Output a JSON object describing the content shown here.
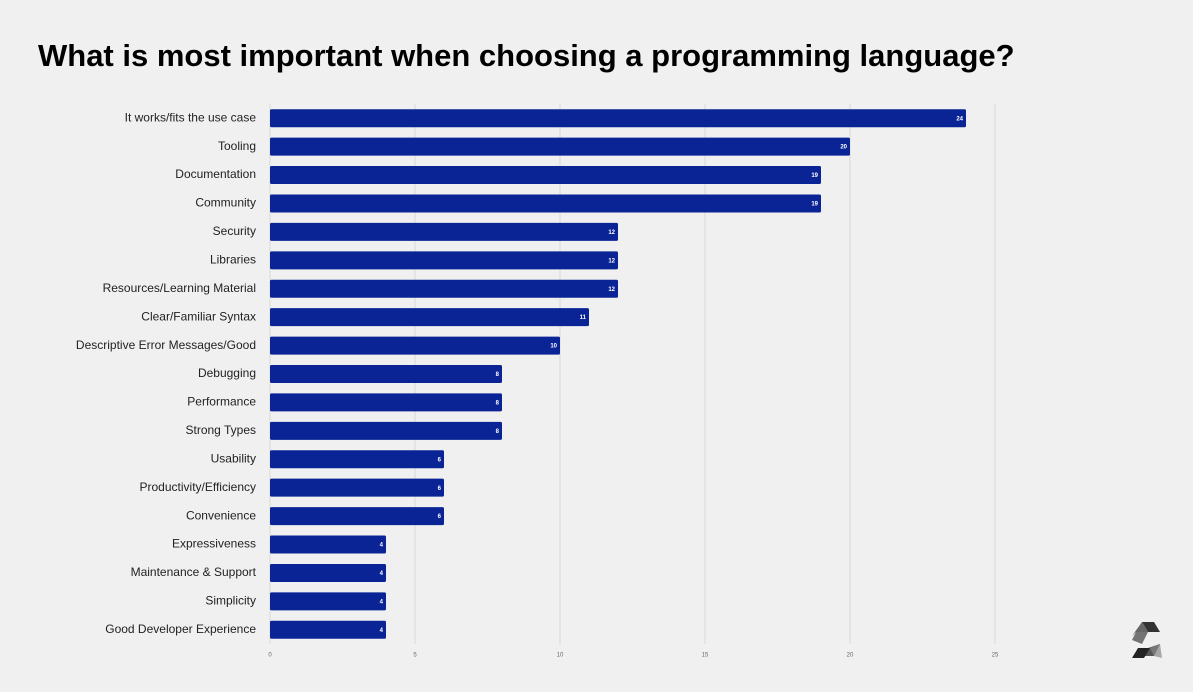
{
  "chart_data": {
    "type": "bar",
    "orientation": "horizontal",
    "title": "What is most important when choosing a programming language?",
    "categories": [
      "It works/fits the use case",
      "Tooling",
      "Documentation",
      "Community",
      "Security",
      "Libraries",
      "Resources/Learning Material",
      "Clear/Familiar Syntax",
      "Descriptive Error Messages/Good",
      "Debugging",
      "Performance",
      "Strong Types",
      "Usability",
      "Productivity/Efficiency",
      "Convenience",
      "Expressiveness",
      "Maintenance & Support",
      "Simplicity",
      "Good Developer Experience"
    ],
    "values": [
      24,
      20,
      19,
      19,
      12,
      12,
      12,
      11,
      10,
      8,
      8,
      8,
      6,
      6,
      6,
      4,
      4,
      4,
      4
    ],
    "color": "#0a2496",
    "xlim": [
      0,
      25
    ],
    "xticks": [
      0,
      5,
      10,
      15,
      20,
      25
    ],
    "grid": true
  }
}
